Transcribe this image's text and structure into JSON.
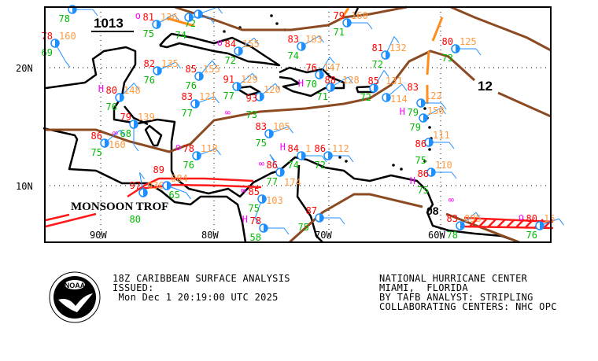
{
  "map": {
    "isobar_labels": [
      "1013",
      "12",
      "08"
    ],
    "feature_label": "MONSOON TROF",
    "lat_labels": [
      "20N",
      "10N"
    ],
    "lon_labels": [
      "90W",
      "80W",
      "70W",
      "60W"
    ],
    "colors": {
      "isobar": "#8b4a22",
      "trough": "#ff8c1a",
      "monsoon_trough": "#ff1a1a",
      "coast": "#000000",
      "station": "#1e8fff",
      "temperature": "#ff0000",
      "pressure": "#ff9a40",
      "dewpoint": "#00bb00",
      "weather": "#ff00ff"
    },
    "stations": [
      {
        "temp": "",
        "pressure": "",
        "dewpoint": "78"
      },
      {
        "temp": "81",
        "pressure": "136",
        "dewpoint": "75"
      },
      {
        "temp": "",
        "pressure": "",
        "dewpoint": "72"
      },
      {
        "temp": "",
        "pressure": "",
        "dewpoint": "74"
      },
      {
        "temp": "78",
        "pressure": "160",
        "dewpoint": "69"
      },
      {
        "temp": "82",
        "pressure": "135",
        "dewpoint": "76"
      },
      {
        "temp": "85",
        "pressure": "155",
        "dewpoint": "76"
      },
      {
        "temp": "84",
        "pressure": "155",
        "dewpoint": "72"
      },
      {
        "temp": "80",
        "pressure": "148",
        "dewpoint": "76"
      },
      {
        "temp": "83",
        "pressure": "121",
        "dewpoint": "77"
      },
      {
        "temp": "91",
        "pressure": "129",
        "dewpoint": "77"
      },
      {
        "temp": "93",
        "pressure": "120",
        "dewpoint": "73"
      },
      {
        "temp": "83",
        "pressure": "183",
        "dewpoint": "74"
      },
      {
        "temp": "79",
        "pressure": "160",
        "dewpoint": "71"
      },
      {
        "temp": "81",
        "pressure": "132",
        "dewpoint": "72"
      },
      {
        "temp": "80",
        "pressure": "125",
        "dewpoint": "73"
      },
      {
        "temp": "76",
        "pressure": "147",
        "dewpoint": "70"
      },
      {
        "temp": "88",
        "pressure": "128",
        "dewpoint": "71"
      },
      {
        "temp": "85",
        "pressure": "131",
        "dewpoint": "72"
      },
      {
        "temp": "",
        "pressure": "114",
        "dewpoint": ""
      },
      {
        "temp": "83",
        "pressure": "122",
        "dewpoint": "79"
      },
      {
        "temp": "",
        "pressure": "150",
        "dewpoint": "79"
      },
      {
        "temp": "86",
        "pressure": "111",
        "dewpoint": "75"
      },
      {
        "temp": "86",
        "pressure": "110",
        "dewpoint": "75"
      },
      {
        "temp": "79",
        "pressure": "139",
        "dewpoint": "68"
      },
      {
        "temp": "86",
        "pressure": "160",
        "dewpoint": "75"
      },
      {
        "temp": "78",
        "pressure": "118",
        "dewpoint": "76"
      },
      {
        "temp": "83",
        "pressure": "105",
        "dewpoint": "75"
      },
      {
        "temp": "84",
        "pressure": "1",
        "dewpoint": "74"
      },
      {
        "temp": "86",
        "pressure": "112",
        "dewpoint": "72"
      },
      {
        "temp": "86",
        "pressure": "174",
        "dewpoint": "77"
      },
      {
        "temp": "97",
        "pressure": "030",
        "dewpoint": "80"
      },
      {
        "temp": "89",
        "pressure": "084",
        "dewpoint": "65"
      },
      {
        "temp": "85",
        "pressure": "103",
        "dewpoint": "75"
      },
      {
        "temp": "78",
        "pressure": "",
        "dewpoint": "58"
      },
      {
        "temp": "87",
        "pressure": "",
        "dewpoint": "75"
      },
      {
        "temp": "83",
        "pressure": "095",
        "dewpoint": "78"
      },
      {
        "temp": "80",
        "pressure": "16",
        "dewpoint": "76"
      }
    ]
  },
  "footer": {
    "logo_text": "NOAA",
    "product_title": "18Z CARIBBEAN SURFACE ANALYSIS",
    "issued_label": "ISSUED:",
    "issued_time": " Mon Dec 1 20:19:00 UTC 2025",
    "center": "NATIONAL HURRICANE CENTER",
    "location": "MIAMI,  FLORIDA",
    "analyst": "BY TAFB ANALYST: STRIPLING",
    "collaborating": "COLLABORATING CENTERS: NHC OPC"
  }
}
